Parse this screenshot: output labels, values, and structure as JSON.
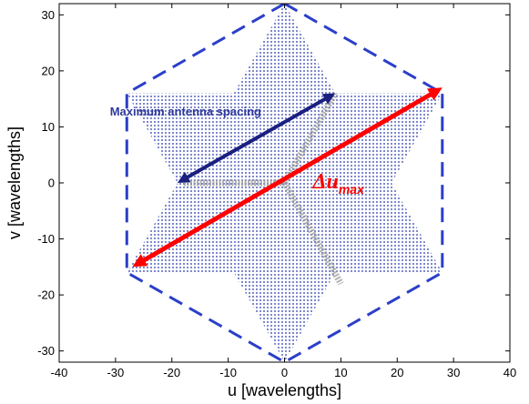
{
  "chart_data": {
    "type": "scatter",
    "title": "",
    "xlabel": "u [wavelengths]",
    "ylabel": "v [wavelengths]",
    "xlim": [
      -40,
      40
    ],
    "ylim": [
      -32,
      32
    ],
    "xticks": [
      -40,
      -30,
      -20,
      -10,
      0,
      10,
      20,
      30,
      40
    ],
    "yticks": [
      -30,
      -20,
      -10,
      0,
      10,
      20,
      30
    ],
    "xtick_labels": [
      "-40",
      "-30",
      "-20",
      "-10",
      "0",
      "10",
      "20",
      "30",
      "40"
    ],
    "ytick_labels": [
      "-30",
      "-20",
      "-10",
      "0",
      "10",
      "20",
      "30"
    ],
    "grid": false,
    "series": [
      {
        "kind": "uv-coverage-samples",
        "shape": "hexagram",
        "color": "#4a5ab8",
        "outer_vertices": [
          [
            0,
            32
          ],
          [
            9,
            16
          ],
          [
            28,
            16
          ],
          [
            19,
            0
          ],
          [
            28,
            -16
          ],
          [
            9,
            -16
          ],
          [
            0,
            -32
          ],
          [
            -9,
            -16
          ],
          [
            -28,
            -16
          ],
          [
            -19,
            0
          ],
          [
            -28,
            16
          ],
          [
            -9,
            16
          ]
        ]
      },
      {
        "kind": "boundary-hexagon",
        "style": "dashed",
        "color": "#2b3fc9",
        "vertices": [
          [
            0,
            32
          ],
          [
            28,
            16
          ],
          [
            28,
            -16
          ],
          [
            0,
            -32
          ],
          [
            -28,
            -16
          ],
          [
            -28,
            16
          ]
        ]
      },
      {
        "kind": "array-layout-arms",
        "color": "#9a9a9a",
        "from": [
          0,
          0
        ],
        "arm_ends": [
          [
            9,
            16
          ],
          [
            -18,
            0
          ],
          [
            10,
            -18
          ]
        ]
      }
    ],
    "annotations": [
      {
        "text": "Maximum antenna spacing",
        "color": "#2f3a9c",
        "at": [
          -31,
          12
        ],
        "arrow": {
          "from": [
            -19,
            0
          ],
          "to": [
            9,
            16
          ],
          "color": "#1a1f80",
          "heads": "both"
        }
      },
      {
        "text": "Δu",
        "subscript": "max",
        "color": "#ff0000",
        "at": [
          5,
          -1
        ],
        "arrow": {
          "from": [
            -27,
            -15
          ],
          "to": [
            28,
            17
          ],
          "color": "#ff0000",
          "heads": "both"
        }
      }
    ]
  }
}
